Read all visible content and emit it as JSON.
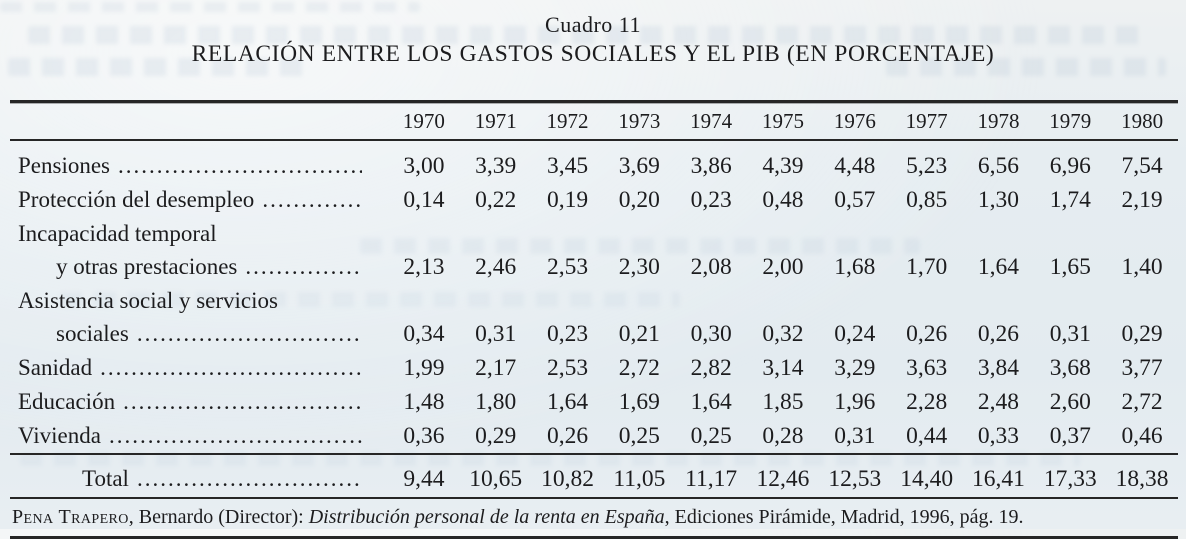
{
  "title": {
    "kicker": "Cuadro 11",
    "heading": "RELACIÓN ENTRE LOS GASTOS SOCIALES Y EL PIB (EN PORCENTAJE)"
  },
  "table": {
    "years": [
      "1970",
      "1971",
      "1972",
      "1973",
      "1974",
      "1975",
      "1976",
      "1977",
      "1978",
      "1979",
      "1980"
    ],
    "rows": [
      {
        "label": "Pensiones",
        "label2": null,
        "values": [
          "3,00",
          "3,39",
          "3,45",
          "3,69",
          "3,86",
          "4,39",
          "4,48",
          "5,23",
          "6,56",
          "6,96",
          "7,54"
        ]
      },
      {
        "label": "Protección del desempleo",
        "label2": null,
        "values": [
          "0,14",
          "0,22",
          "0,19",
          "0,20",
          "0,23",
          "0,48",
          "0,57",
          "0,85",
          "1,30",
          "1,74",
          "2,19"
        ]
      },
      {
        "label": "Incapacidad temporal",
        "label2": "y otras prestaciones",
        "values": [
          "2,13",
          "2,46",
          "2,53",
          "2,30",
          "2,08",
          "2,00",
          "1,68",
          "1,70",
          "1,64",
          "1,65",
          "1,40"
        ]
      },
      {
        "label": "Asistencia social y servicios",
        "label2": "sociales",
        "values": [
          "0,34",
          "0,31",
          "0,23",
          "0,21",
          "0,30",
          "0,32",
          "0,24",
          "0,26",
          "0,26",
          "0,31",
          "0,29"
        ]
      },
      {
        "label": "Sanidad",
        "label2": null,
        "values": [
          "1,99",
          "2,17",
          "2,53",
          "2,72",
          "2,82",
          "3,14",
          "3,29",
          "3,63",
          "3,84",
          "3,68",
          "3,77"
        ]
      },
      {
        "label": "Educación",
        "label2": null,
        "values": [
          "1,48",
          "1,80",
          "1,64",
          "1,69",
          "1,64",
          "1,85",
          "1,96",
          "2,28",
          "2,48",
          "2,60",
          "2,72"
        ]
      },
      {
        "label": "Vivienda",
        "label2": null,
        "values": [
          "0,36",
          "0,29",
          "0,26",
          "0,25",
          "0,25",
          "0,28",
          "0,31",
          "0,44",
          "0,33",
          "0,37",
          "0,46"
        ]
      }
    ],
    "total": {
      "label": "Total",
      "values": [
        "9,44",
        "10,65",
        "10,82",
        "11,05",
        "11,17",
        "12,46",
        "12,53",
        "14,40",
        "16,41",
        "17,33",
        "18,38"
      ]
    }
  },
  "source": {
    "authors": "Pena Trapero",
    "middle": ", Bernardo (Director): ",
    "book_title": "Distribución personal de la renta en España",
    "tail": ", Ediciones Pirámide, Madrid, 1996, pág. 19."
  }
}
